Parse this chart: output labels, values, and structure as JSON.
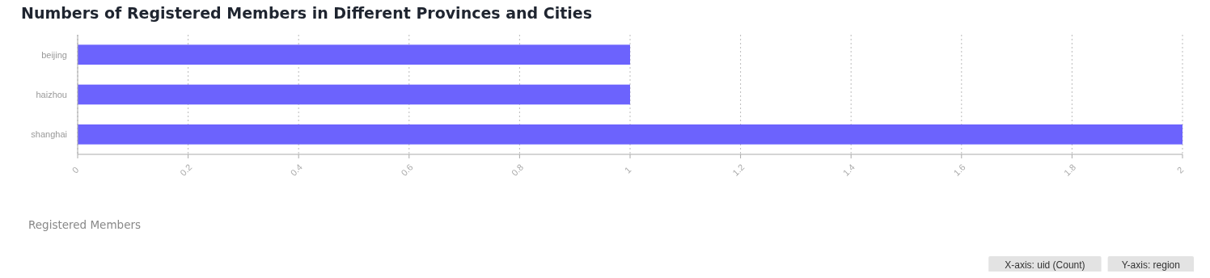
{
  "chart_data": {
    "type": "bar",
    "orientation": "horizontal",
    "title": "Numbers of Registered Members in Different Provinces and Cities",
    "categories": [
      "beijing",
      "haizhou",
      "shanghai"
    ],
    "values": [
      1,
      1,
      2
    ],
    "color": "#6c63fd",
    "xlim": [
      0,
      2
    ],
    "xticks": [
      0,
      0.2,
      0.4,
      0.6,
      0.8,
      1,
      1.2,
      1.4,
      1.6,
      1.8,
      2
    ],
    "grid": "x",
    "annotations": [
      "Registered Members",
      "X-axis: uid (Count)",
      "Y-axis: region"
    ]
  }
}
